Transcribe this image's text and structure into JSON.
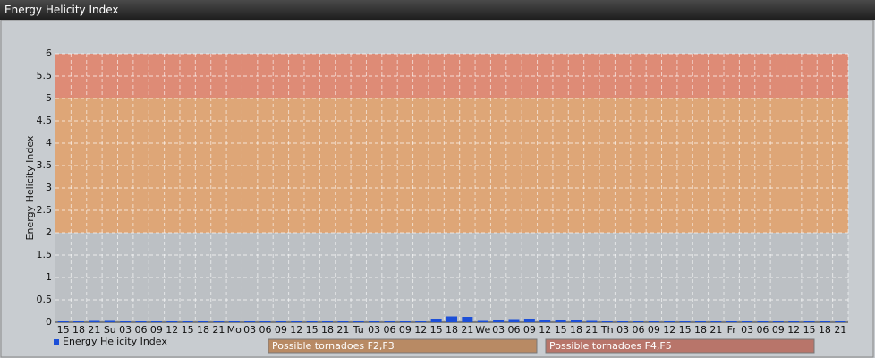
{
  "header": {
    "title": "Energy Helicity Index"
  },
  "chart_data": {
    "type": "bar",
    "y_label": "Energy Helicity Index",
    "categories": [
      "15",
      "18",
      "21",
      "Su",
      "03",
      "06",
      "09",
      "12",
      "15",
      "18",
      "21",
      "Mo",
      "03",
      "06",
      "09",
      "12",
      "15",
      "18",
      "21",
      "Tu",
      "03",
      "06",
      "09",
      "12",
      "15",
      "18",
      "21",
      "We",
      "03",
      "06",
      "09",
      "12",
      "15",
      "18",
      "21",
      "Th",
      "03",
      "06",
      "09",
      "12",
      "15",
      "18",
      "21",
      "Fr",
      "03",
      "06",
      "09",
      "12",
      "15",
      "18",
      "21"
    ],
    "series": [
      {
        "name": "Energy Helicity Index",
        "color": "#1c4fd8",
        "values": [
          0.02,
          0.02,
          0.03,
          0.03,
          0.02,
          0.02,
          0.02,
          0.02,
          0.02,
          0.02,
          0.02,
          0.02,
          0.02,
          0.02,
          0.02,
          0.02,
          0.02,
          0.02,
          0.02,
          0.02,
          0.02,
          0.02,
          0.02,
          0.02,
          0.08,
          0.13,
          0.12,
          0.03,
          0.06,
          0.07,
          0.08,
          0.06,
          0.04,
          0.04,
          0.03,
          0.02,
          0.02,
          0.02,
          0.02,
          0.02,
          0.02,
          0.02,
          0.02,
          0.02,
          0.02,
          0.02,
          0.02,
          0.02,
          0.02,
          0.02,
          0.02
        ]
      }
    ],
    "ylim": [
      0,
      6
    ],
    "yticks": [
      0,
      0.5,
      1,
      1.5,
      2,
      2.5,
      3,
      3.5,
      4,
      4.5,
      5,
      5.5,
      6
    ],
    "grid": true,
    "bands": [
      {
        "from": 0,
        "to": 2,
        "color": "#bcc0c4"
      },
      {
        "from": 2,
        "to": 5,
        "color": "#dea677"
      },
      {
        "from": 5,
        "to": 6,
        "color": "#de8b76"
      }
    ],
    "annotations": [
      {
        "text": "Possible tornadoes F2,F3",
        "color": "#b88a64"
      },
      {
        "text": "Possible tornadoes F4,F5",
        "color": "#b8756a"
      }
    ]
  }
}
